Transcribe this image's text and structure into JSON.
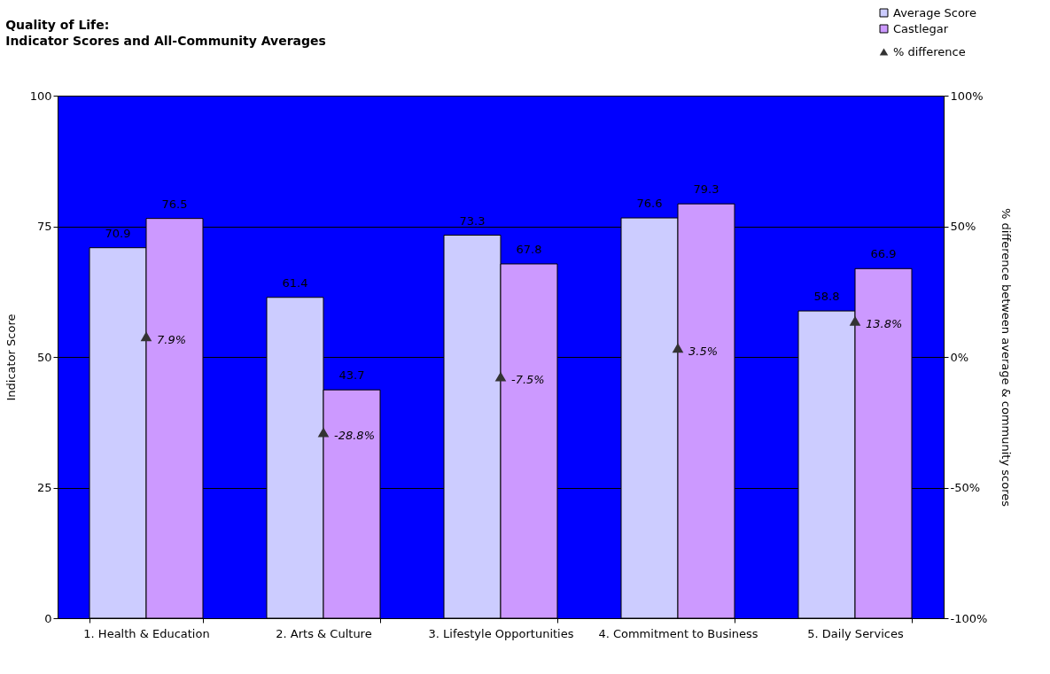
{
  "chart_data": {
    "type": "bar",
    "title": "Quality of Life:",
    "subtitle": "Indicator Scores and All-Community Averages",
    "ylabel": "Indicator Score",
    "y2label": "% difference between average & community scores",
    "categories": [
      "1. Health & Education",
      "2. Arts & Culture",
      "3. Lifestyle Opportunities",
      "4. Commitment to Business",
      "5. Daily Services"
    ],
    "series": [
      {
        "name": "Average Score",
        "color": "#ccccff",
        "values": [
          70.9,
          61.4,
          73.3,
          76.6,
          58.8
        ]
      },
      {
        "name": "Castlegar",
        "color": "#cc99ff",
        "values": [
          76.5,
          43.7,
          67.8,
          79.3,
          66.9
        ]
      },
      {
        "name": "% difference",
        "type": "scatter",
        "axis": "y2",
        "color": "#333333",
        "x": [
          "1. Health & Education",
          "2. Arts & Culture",
          "3. Lifestyle Opportunities",
          "4. Commitment to Business",
          "5. Daily Services"
        ],
        "values": [
          7.9,
          -28.8,
          -7.5,
          3.5,
          13.8
        ],
        "value_labels": [
          "7.9%",
          "-28.8%",
          "-7.5%",
          "3.5%",
          "13.8%"
        ]
      }
    ],
    "ylim": [
      0,
      100
    ],
    "yticks": [
      0,
      25,
      50,
      75,
      100
    ],
    "y2lim": [
      -100,
      100
    ],
    "y2ticks": [
      {
        "value": -100,
        "label": "-100%"
      },
      {
        "value": -50,
        "label": "-50%"
      },
      {
        "value": 0,
        "label": "0%"
      },
      {
        "value": 50,
        "label": "50%"
      },
      {
        "value": 100,
        "label": "100%"
      }
    ],
    "grid": "y",
    "legend": "top right",
    "marker": "triangle",
    "data_labels": true
  }
}
